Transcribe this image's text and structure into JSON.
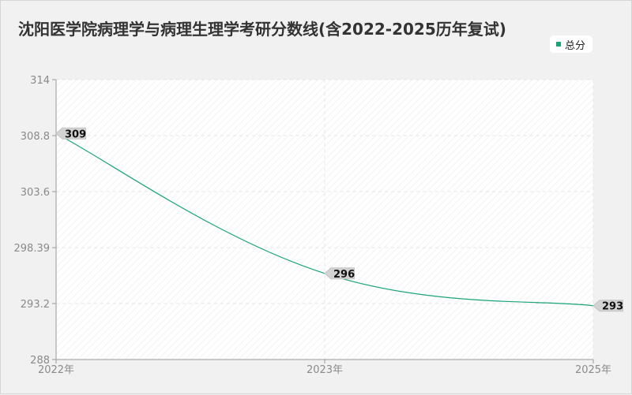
{
  "chart_data": {
    "type": "line",
    "title": "沈阳医学院病理学与病理生理学考研分数线(含2022-2025历年复试)",
    "categories": [
      "2022年",
      "2023年",
      "2025年"
    ],
    "series": [
      {
        "name": "总分",
        "values": [
          309,
          296,
          293
        ],
        "color": "#1aa37a"
      }
    ],
    "yticks": [
      "314",
      "308.8",
      "303.6",
      "298.39",
      "293.2",
      "288"
    ],
    "ylim": [
      288,
      314
    ],
    "legend_position": "top-right",
    "grid": true
  }
}
